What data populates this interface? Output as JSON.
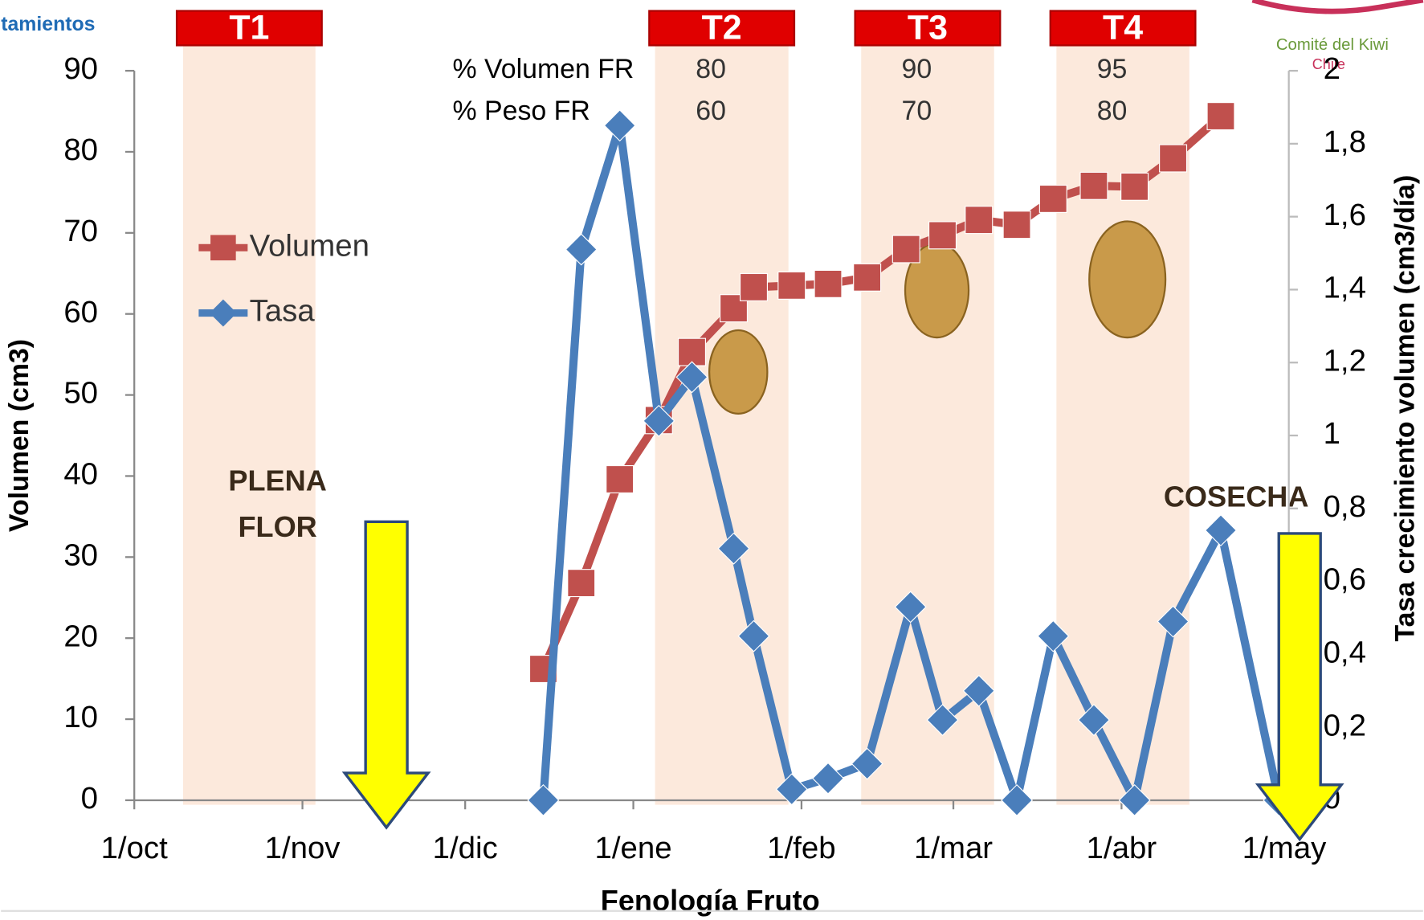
{
  "header": {
    "corner_text": "tamientos",
    "logo_line1": "Comité del Kiwi",
    "logo_line2": "Chile"
  },
  "chart_data": {
    "type": "line",
    "x_label": "Fenología Fruto",
    "y_label": "Volumen (cm3)",
    "y2_label": "Tasa crecimiento volumen (cm3/día)",
    "xlim": [
      0,
      212
    ],
    "xticks": [
      {
        "value": 0,
        "label": "1/oct"
      },
      {
        "value": 31,
        "label": "1/nov"
      },
      {
        "value": 61,
        "label": "1/dic"
      },
      {
        "value": 92,
        "label": "1/ene"
      },
      {
        "value": 123,
        "label": "1/feb"
      },
      {
        "value": 151,
        "label": "1/mar"
      },
      {
        "value": 182,
        "label": "1/abr"
      },
      {
        "value": 212,
        "label": "1/may"
      }
    ],
    "ylim": [
      0,
      90
    ],
    "yticks": [
      0,
      10,
      20,
      30,
      40,
      50,
      60,
      70,
      80,
      90
    ],
    "y2lim": [
      0,
      2
    ],
    "y2ticks": [
      0,
      {
        "value": 0.2,
        "label": "0,2"
      },
      {
        "value": 0.4,
        "label": "0,4"
      },
      {
        "value": 0.6,
        "label": "0,6"
      },
      {
        "value": 0.8,
        "label": "0,8"
      },
      1,
      {
        "value": 1.2,
        "label": "1,2"
      },
      {
        "value": 1.4,
        "label": "1,4"
      },
      {
        "value": 1.6,
        "label": "1,6"
      },
      {
        "value": 1.8,
        "label": "1,8"
      },
      2
    ],
    "legend": "left",
    "series": [
      {
        "name": "Volumen",
        "color": "#c0504d",
        "marker": "square",
        "x": [
          75.4,
          82.4,
          89.5,
          96.7,
          102.8,
          110.5,
          114.2,
          121.2,
          127.9,
          135.1,
          142.3,
          149,
          155.7,
          162.7,
          169.4,
          176.9,
          184.4,
          191.5,
          200.3
        ],
        "values": [
          16.2,
          26.8,
          39.6,
          46.9,
          55.3,
          60.7,
          63.3,
          63.5,
          63.7,
          64.5,
          68,
          69.7,
          71.6,
          71,
          74.2,
          75.8,
          75.7,
          79.2,
          84.4
        ]
      },
      {
        "name": "Tasa",
        "color": "#4a7ebb",
        "marker": "diamond",
        "axis": "y2",
        "x": [
          75.4,
          82.4,
          89.5,
          96.7,
          102.8,
          110.5,
          114.2,
          121.2,
          127.9,
          135.1,
          143.1,
          149,
          155.7,
          162.7,
          169.4,
          176.9,
          184.4,
          191.5,
          200.3,
          211
        ],
        "values": [
          0,
          1.51,
          1.85,
          1.04,
          1.16,
          0.69,
          0.45,
          0.03,
          0.06,
          0.1,
          0.53,
          0.22,
          0.3,
          0,
          0.45,
          0.22,
          0,
          0.49,
          0.74,
          0
        ]
      }
    ],
    "periods": [
      {
        "label": "T1",
        "start": 9,
        "end": 33.4
      },
      {
        "label": "T2",
        "start": 96,
        "end": 120.6
      },
      {
        "label": "T3",
        "start": 134,
        "end": 158.5
      },
      {
        "label": "T4",
        "start": 170,
        "end": 194.5
      }
    ],
    "fr_table": [
      {
        "label": "% Volumen FR",
        "values": [
          80,
          90,
          95
        ]
      },
      {
        "label": "% Peso FR",
        "values": [
          60,
          70,
          80
        ]
      }
    ],
    "annotations": {
      "plena_flor_1": "PLENA",
      "plena_flor_2": "FLOR",
      "cosecha": "COSECHA"
    }
  }
}
